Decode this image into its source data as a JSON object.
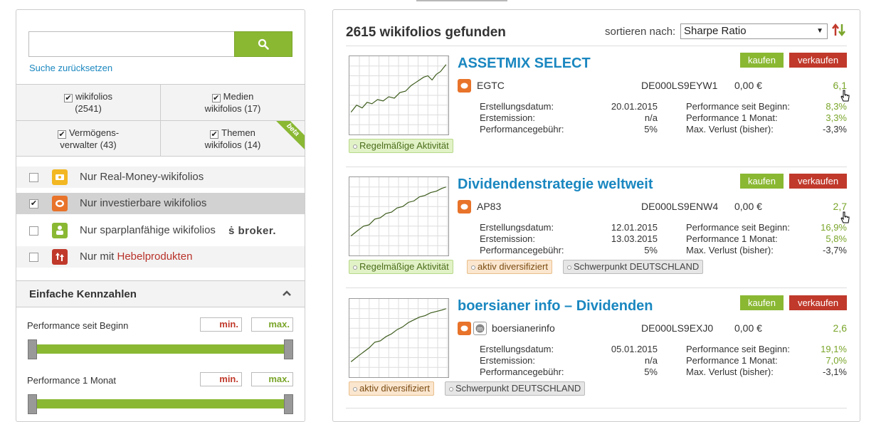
{
  "search": {
    "placeholder": "",
    "reset_label": "Suche zurücksetzen"
  },
  "filters": {
    "grid": [
      {
        "line1": "wikifolios",
        "line2": "(2541)"
      },
      {
        "line1": "Medien",
        "line2": "wikifolios (17)"
      },
      {
        "line1": "Vermögens-",
        "line2": "verwalter (43)"
      },
      {
        "line1": "Themen",
        "line2": "wikifolios (14)"
      }
    ],
    "beta_label": "beta",
    "options": [
      {
        "label": "Nur Real-Money-wikifolios",
        "checked": false,
        "icon": "money-icon",
        "color": "#f2b722"
      },
      {
        "label": "Nur investierbare wikifolios",
        "checked": true,
        "icon": "investable-icon",
        "color": "#e8732a"
      },
      {
        "label": "Nur sparplanfähige wikifolios",
        "checked": false,
        "icon": "savings-plan-icon",
        "color": "#8ab833",
        "extra": "broker."
      },
      {
        "label": "Nur mit ",
        "label_red": "Hebelprodukten",
        "checked": false,
        "icon": "leverage-icon",
        "color": "#c0392b"
      }
    ]
  },
  "kennzahlen": {
    "title": "Einfache Kennzahlen",
    "items": [
      {
        "label": "Performance seit Beginn",
        "min": "min.",
        "max": "max."
      },
      {
        "label": "Performance 1 Monat",
        "min": "min.",
        "max": "max."
      }
    ]
  },
  "results": {
    "found_label": "2615 wikifolios gefunden",
    "sort_label": "sortieren nach:",
    "sort_value": "Sharpe Ratio",
    "buy_label": "kaufen",
    "sell_label": "verkaufen",
    "labels": {
      "created": "Erstellungsdatum:",
      "emission": "Erstemission:",
      "fee": "Performancegebühr:",
      "perf_start": "Performance seit Beginn:",
      "perf_month": "Performance 1 Monat:",
      "max_loss": "Max. Verlust (bisher):"
    },
    "cards": [
      {
        "title": "ASSETMIX SELECT",
        "trader": "EGTC",
        "isin": "DE000LS9EYW1",
        "price": "0,00 €",
        "score": "6,1",
        "created": "20.01.2015",
        "emission": "n/a",
        "fee": "5%",
        "perf_start": "8,3%",
        "perf_month": "3,3%",
        "max_loss": "-3,3%",
        "tags": [
          {
            "text": "Regelmäßige Aktivität",
            "style": "green"
          }
        ]
      },
      {
        "title": "Dividendenstrategie weltweit",
        "trader": "AP83",
        "isin": "DE000LS9ENW4",
        "price": "0,00 €",
        "score": "2,7",
        "created": "12.01.2015",
        "emission": "13.03.2015",
        "fee": "5%",
        "perf_start": "16,9%",
        "perf_month": "5,8%",
        "max_loss": "-3,7%",
        "tags": [
          {
            "text": "Regelmäßige Aktivität",
            "style": "green"
          },
          {
            "text": "aktiv diversifiziert",
            "style": "orange"
          },
          {
            "text": "Schwerpunkt DEUTSCHLAND",
            "style": "gray"
          }
        ]
      },
      {
        "title": "boersianer info – Dividenden",
        "trader": "boersianerinfo",
        "isin": "DE000LS9EXJ0",
        "price": "0,00 €",
        "score": "2,6",
        "created": "05.01.2015",
        "emission": "n/a",
        "fee": "5%",
        "perf_start": "19,1%",
        "perf_month": "7,0%",
        "max_loss": "-3,1%",
        "tags": [
          {
            "text": "aktiv diversifiziert",
            "style": "orange"
          },
          {
            "text": "Schwerpunkt DEUTSCHLAND",
            "style": "gray"
          }
        ]
      }
    ]
  },
  "colors": {
    "accent_green": "#8ab833",
    "sell_red": "#c0392b",
    "link_blue": "#1a87c0"
  }
}
